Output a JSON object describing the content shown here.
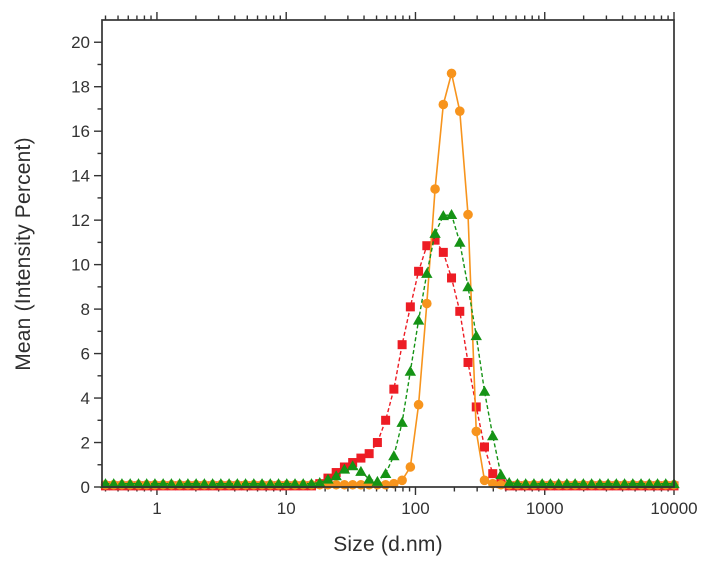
{
  "chart_data": {
    "type": "line",
    "title": "",
    "xlabel": "Size (d.nm)",
    "ylabel": "Mean (Intensity Percent)",
    "x_scale": "log",
    "xlim": [
      0.3758,
      10000
    ],
    "ylim": [
      0,
      21
    ],
    "grid": false,
    "legend": "none",
    "frame_color": "#333333",
    "x_major_ticks": [
      1,
      10,
      100,
      1000,
      10000
    ],
    "x_major_tick_labels": [
      "1",
      "10",
      "100",
      "1000",
      "10000"
    ],
    "y_major_ticks": [
      0,
      2,
      4,
      6,
      8,
      10,
      12,
      14,
      16,
      18,
      20
    ],
    "y_major_tick_labels": [
      "0",
      "2",
      "4",
      "6",
      "8",
      "10",
      "12",
      "14",
      "16",
      "18",
      "20"
    ],
    "y_minor_step": 1,
    "x": [
      0.4,
      0.463,
      0.536,
      0.621,
      0.72,
      0.833,
      0.965,
      1.117,
      1.294,
      1.499,
      1.736,
      2.01,
      2.328,
      2.696,
      3.122,
      3.615,
      4.187,
      4.849,
      5.615,
      6.503,
      7.531,
      8.721,
      10.1,
      11.7,
      13.54,
      15.69,
      18.17,
      21.04,
      24.36,
      28.21,
      32.67,
      37.84,
      43.82,
      50.75,
      58.77,
      68.06,
      78.82,
      91.28,
      105.7,
      122.4,
      141.8,
      164.2,
      190.1,
      220.2,
      255.0,
      295.3,
      342.0,
      396.1,
      458.7,
      531.2,
      615.1,
      712.4,
      825.0,
      955.4,
      1106,
      1281,
      1484,
      1718,
      1990,
      2305,
      2669,
      3091,
      3580,
      4145,
      4801,
      5560,
      6439,
      7456,
      8635,
      10000
    ],
    "series": [
      {
        "name": "red-squares",
        "color": "#ed1c24",
        "marker": "square",
        "line_style": "dashed",
        "values": [
          0.05,
          0.05,
          0.05,
          0.05,
          0.05,
          0.05,
          0.05,
          0.05,
          0.05,
          0.05,
          0.05,
          0.05,
          0.05,
          0.05,
          0.05,
          0.05,
          0.05,
          0.05,
          0.05,
          0.05,
          0.05,
          0.05,
          0.05,
          0.05,
          0.05,
          0.05,
          0.15,
          0.4,
          0.65,
          0.9,
          1.1,
          1.3,
          1.5,
          2.0,
          3.0,
          4.4,
          6.4,
          8.1,
          9.7,
          10.85,
          11.1,
          10.55,
          9.4,
          7.9,
          5.6,
          3.6,
          1.8,
          0.6,
          0.15,
          0.05,
          0.05,
          0.05,
          0.05,
          0.05,
          0.05,
          0.05,
          0.05,
          0.05,
          0.05,
          0.05,
          0.05,
          0.05,
          0.05,
          0.05,
          0.05,
          0.05,
          0.05,
          0.05,
          0.05,
          0.05
        ]
      },
      {
        "name": "orange-circles",
        "color": "#f7941d",
        "marker": "circle",
        "line_style": "solid",
        "values": [
          0.1,
          0.1,
          0.1,
          0.1,
          0.1,
          0.1,
          0.1,
          0.1,
          0.1,
          0.1,
          0.1,
          0.1,
          0.1,
          0.1,
          0.1,
          0.1,
          0.1,
          0.1,
          0.1,
          0.1,
          0.1,
          0.1,
          0.1,
          0.1,
          0.1,
          0.1,
          0.1,
          0.1,
          0.1,
          0.1,
          0.1,
          0.1,
          0.1,
          0.1,
          0.1,
          0.15,
          0.3,
          0.9,
          3.7,
          8.25,
          13.4,
          17.2,
          18.6,
          16.9,
          12.25,
          2.5,
          0.3,
          0.15,
          0.1,
          0.1,
          0.1,
          0.1,
          0.1,
          0.1,
          0.1,
          0.1,
          0.1,
          0.1,
          0.1,
          0.1,
          0.1,
          0.1,
          0.1,
          0.1,
          0.1,
          0.1,
          0.1,
          0.1,
          0.1,
          0.1
        ]
      },
      {
        "name": "green-triangles",
        "color": "#159315",
        "marker": "triangle",
        "line_style": "dashed",
        "values": [
          0.15,
          0.15,
          0.15,
          0.15,
          0.15,
          0.15,
          0.15,
          0.15,
          0.15,
          0.15,
          0.15,
          0.15,
          0.15,
          0.15,
          0.15,
          0.15,
          0.15,
          0.15,
          0.15,
          0.15,
          0.15,
          0.15,
          0.15,
          0.15,
          0.15,
          0.15,
          0.2,
          0.35,
          0.5,
          0.8,
          0.95,
          0.7,
          0.35,
          0.25,
          0.6,
          1.4,
          2.9,
          5.2,
          7.5,
          9.6,
          11.4,
          12.2,
          12.25,
          11.0,
          9.0,
          6.8,
          4.3,
          2.3,
          0.55,
          0.2,
          0.15,
          0.15,
          0.15,
          0.15,
          0.15,
          0.15,
          0.15,
          0.15,
          0.15,
          0.15,
          0.15,
          0.15,
          0.15,
          0.15,
          0.15,
          0.15,
          0.15,
          0.15,
          0.15,
          0.15
        ]
      }
    ]
  }
}
